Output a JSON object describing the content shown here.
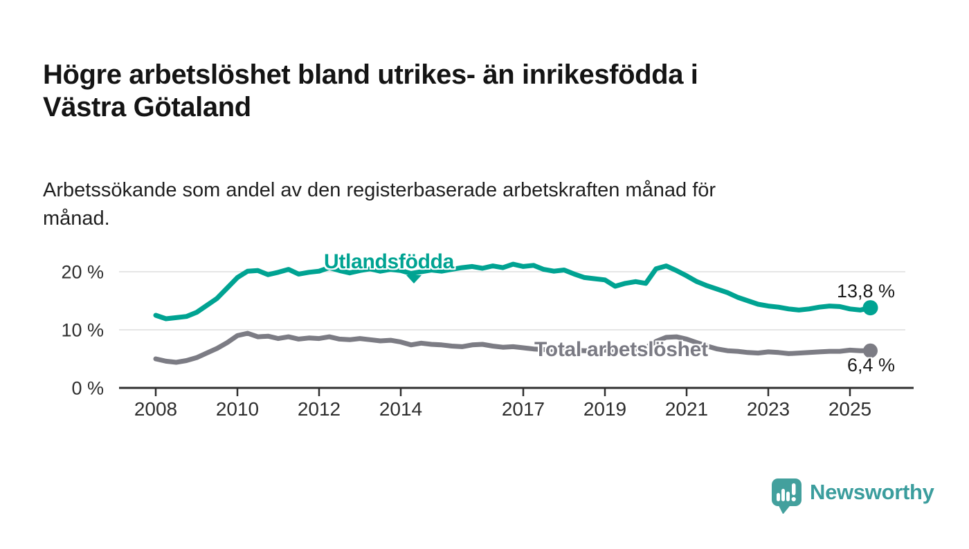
{
  "header": {
    "title_lines": [
      "Högre arbetslöshet bland utrikes- än inrikesfödda i",
      "Västra Götaland"
    ],
    "subtitle_lines": [
      "Arbetssökande som andel av den registerbaserade arbetskraften månad för",
      "månad."
    ]
  },
  "chart_data": {
    "type": "line",
    "title": "Högre arbetslöshet bland utrikes- än inrikesfödda i Västra Götaland",
    "subtitle": "Arbetssökande som andel av den registerbaserade arbetskraften månad för månad.",
    "xlabel": "",
    "ylabel": "",
    "x_axis": {
      "ticks": [
        2008,
        2010,
        2012,
        2014,
        2017,
        2019,
        2021,
        2023,
        2025
      ],
      "range": [
        2007.1,
        2026.5
      ]
    },
    "y_axis": {
      "ticks": [
        0,
        10,
        20
      ],
      "tick_labels": [
        "0 %",
        "10 %",
        "20 %"
      ],
      "unit": "%",
      "range": [
        0,
        23
      ]
    },
    "grid": "horizontal",
    "legend_position": "direct-labels-on-lines",
    "x": [
      2008,
      2008.25,
      2008.5,
      2008.75,
      2009,
      2009.25,
      2009.5,
      2009.75,
      2010,
      2010.25,
      2010.5,
      2010.75,
      2011,
      2011.25,
      2011.5,
      2011.75,
      2012,
      2012.25,
      2012.5,
      2012.75,
      2013,
      2013.25,
      2013.5,
      2013.75,
      2014,
      2014.25,
      2014.5,
      2014.75,
      2015,
      2015.25,
      2015.5,
      2015.75,
      2016,
      2016.25,
      2016.5,
      2016.75,
      2017,
      2017.25,
      2017.5,
      2017.75,
      2018,
      2018.25,
      2018.5,
      2018.75,
      2019,
      2019.25,
      2019.5,
      2019.75,
      2020,
      2020.25,
      2020.5,
      2020.75,
      2021,
      2021.25,
      2021.5,
      2021.75,
      2022,
      2022.25,
      2022.5,
      2022.75,
      2023,
      2023.25,
      2023.5,
      2023.75,
      2024,
      2024.25,
      2024.5,
      2024.75,
      2025,
      2025.25,
      2025.5
    ],
    "series": [
      {
        "name": "Utlandsfödda",
        "color": "#00a392",
        "end_label": "13,8 %",
        "end_value": 13.8,
        "values": [
          12.5,
          11.9,
          12.1,
          12.3,
          13.0,
          14.2,
          15.4,
          17.2,
          19.0,
          20.1,
          20.2,
          19.5,
          19.9,
          20.4,
          19.6,
          19.9,
          20.1,
          20.7,
          20.2,
          19.8,
          20.2,
          20.5,
          20.1,
          20.4,
          20.2,
          19.7,
          20.0,
          20.3,
          20.1,
          20.4,
          20.7,
          20.9,
          20.6,
          21.0,
          20.7,
          21.3,
          20.9,
          21.1,
          20.4,
          20.1,
          20.3,
          19.6,
          19.0,
          18.8,
          18.6,
          17.5,
          18.0,
          18.3,
          18.0,
          20.5,
          21.0,
          20.2,
          19.3,
          18.3,
          17.6,
          17.0,
          16.4,
          15.6,
          15.0,
          14.4,
          14.1,
          13.9,
          13.6,
          13.4,
          13.6,
          13.9,
          14.1,
          14.0,
          13.6,
          13.4,
          13.8
        ]
      },
      {
        "name": "Total arbetslöshet",
        "color": "#7c7c84",
        "end_label": "6,4 %",
        "end_value": 6.4,
        "values": [
          5.0,
          4.6,
          4.4,
          4.7,
          5.2,
          6.0,
          6.8,
          7.8,
          9.0,
          9.4,
          8.8,
          8.9,
          8.5,
          8.8,
          8.4,
          8.6,
          8.5,
          8.8,
          8.4,
          8.3,
          8.5,
          8.3,
          8.1,
          8.2,
          7.9,
          7.4,
          7.7,
          7.5,
          7.4,
          7.2,
          7.1,
          7.4,
          7.5,
          7.2,
          7.0,
          7.1,
          6.9,
          6.7,
          6.6,
          6.6,
          6.6,
          6.5,
          6.4,
          6.4,
          6.5,
          6.5,
          6.6,
          6.7,
          6.9,
          8.0,
          8.7,
          8.8,
          8.4,
          7.8,
          7.2,
          6.7,
          6.4,
          6.3,
          6.1,
          6.0,
          6.2,
          6.1,
          5.9,
          6.0,
          6.1,
          6.2,
          6.3,
          6.3,
          6.5,
          6.4,
          6.4
        ]
      }
    ],
    "colors": {
      "grid": "#dedede",
      "axis": "#2f2f2f",
      "tick_text": "#2e2e2e"
    }
  },
  "branding": {
    "name": "Newsworthy",
    "color": "#3b9d9d"
  }
}
